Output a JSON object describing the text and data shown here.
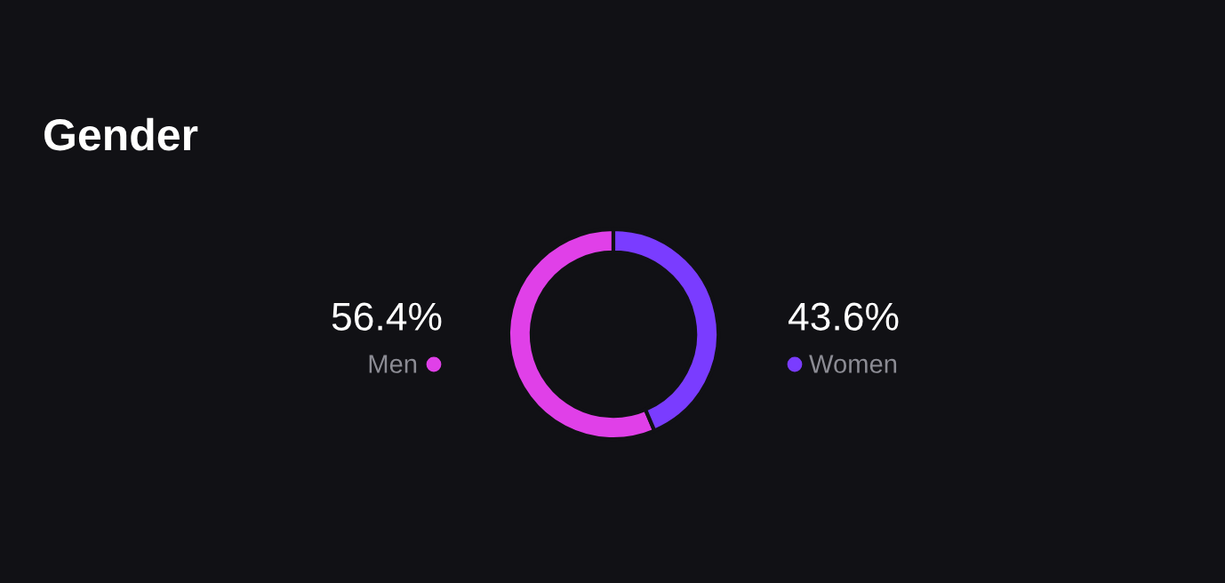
{
  "chart_data": {
    "type": "donut",
    "title": "Gender",
    "categories": [
      "Men",
      "Women"
    ],
    "values": [
      56.4,
      43.6
    ],
    "colors": [
      "#e040e8",
      "#7a3cff"
    ],
    "value_labels": [
      "56.4%",
      "43.6%"
    ]
  }
}
